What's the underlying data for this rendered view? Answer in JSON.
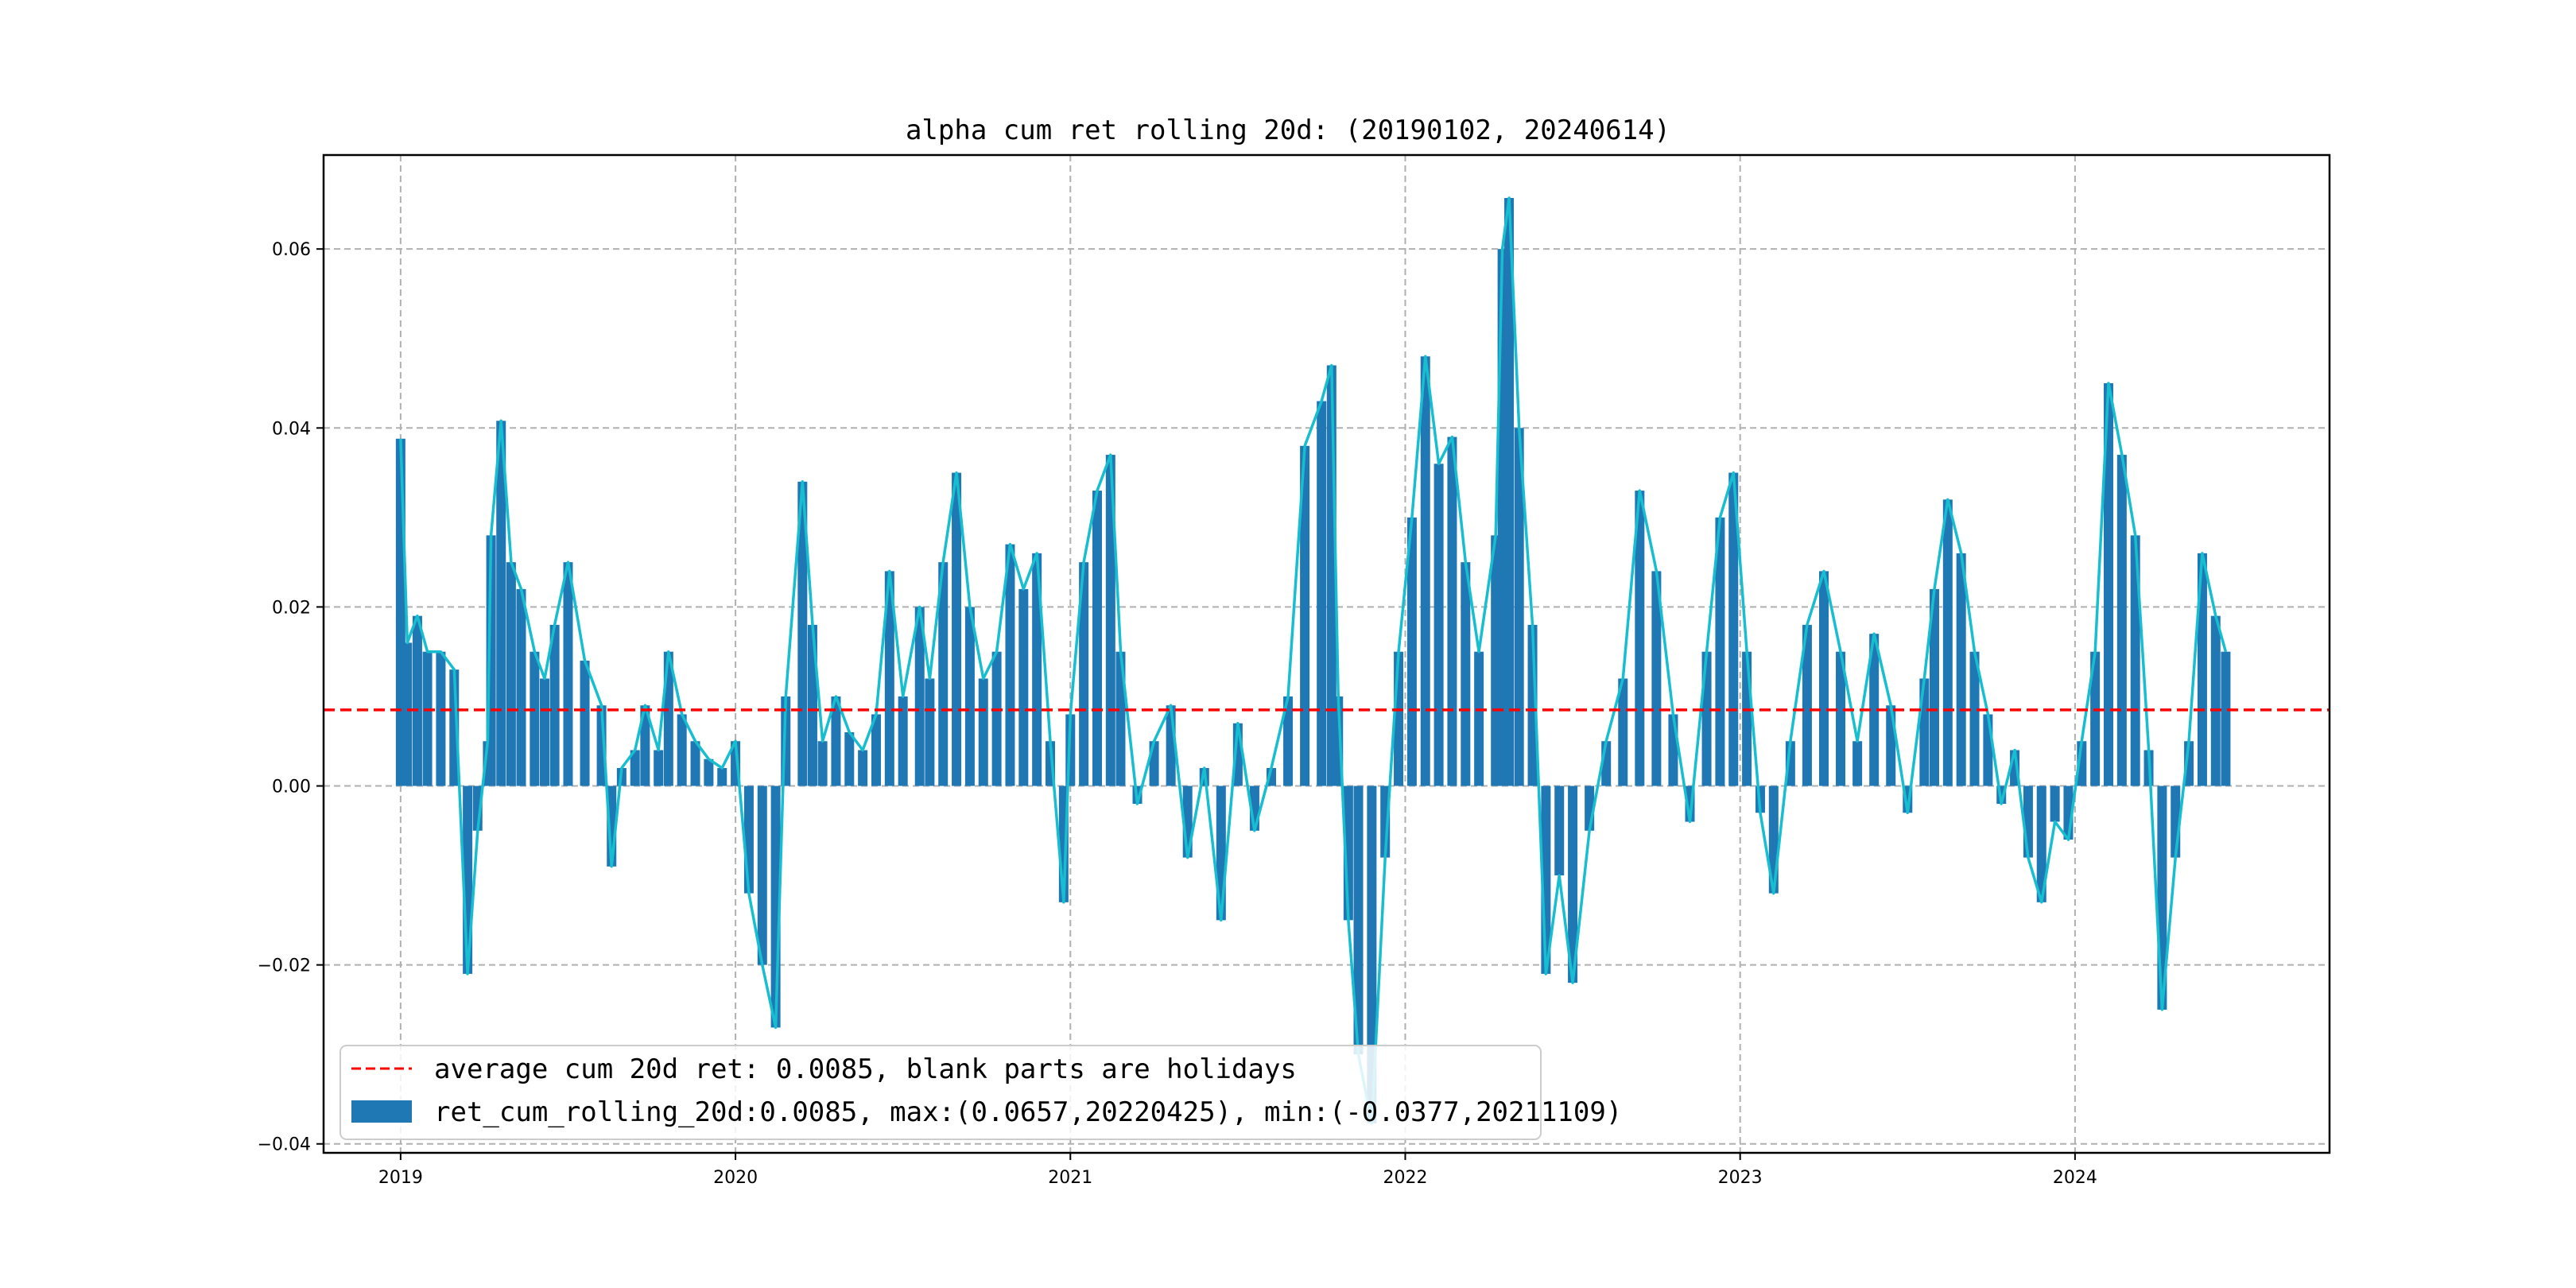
{
  "chart_data": {
    "type": "bar",
    "title": "alpha cum ret rolling 20d: (20190102, 20240614)",
    "xlabel": "",
    "ylabel": "",
    "ylim": [
      -0.041,
      0.0705
    ],
    "xlim": [
      2018.77,
      2024.76
    ],
    "xticks": [
      2019,
      2020,
      2021,
      2022,
      2023,
      2024
    ],
    "xtick_labels": [
      "2019",
      "2020",
      "2021",
      "2022",
      "2023",
      "2024"
    ],
    "yticks": [
      -0.04,
      -0.02,
      0.0,
      0.02,
      0.04,
      0.06
    ],
    "ytick_labels": [
      "−0.04",
      "−0.02",
      "0.00",
      "0.02",
      "0.04",
      "0.06"
    ],
    "grid": true,
    "legend_position": "lower-left",
    "average": 0.0085,
    "legend": {
      "average_label": "average cum 20d ret: 0.0085, blank parts are holidays",
      "series_label": "ret_cum_rolling_20d:0.0085, max:(0.0657,20220425), min:(-0.0377,20211109)"
    },
    "colors": {
      "bar": "#1f77b4",
      "line": "#17becf",
      "average": "#ff0000"
    },
    "series": [
      {
        "name": "ret_cum_rolling_20d",
        "x": [
          2019.0,
          2019.02,
          2019.05,
          2019.08,
          2019.12,
          2019.16,
          2019.2,
          2019.23,
          2019.26,
          2019.27,
          2019.3,
          2019.33,
          2019.36,
          2019.4,
          2019.43,
          2019.46,
          2019.5,
          2019.55,
          2019.6,
          2019.63,
          2019.66,
          2019.7,
          2019.73,
          2019.77,
          2019.8,
          2019.84,
          2019.88,
          2019.92,
          2019.96,
          2020.0,
          2020.04,
          2020.08,
          2020.12,
          2020.15,
          2020.2,
          2020.23,
          2020.26,
          2020.3,
          2020.34,
          2020.38,
          2020.42,
          2020.46,
          2020.5,
          2020.55,
          2020.58,
          2020.62,
          2020.66,
          2020.7,
          2020.74,
          2020.78,
          2020.82,
          2020.86,
          2020.9,
          2020.94,
          2020.98,
          2021.0,
          2021.04,
          2021.08,
          2021.12,
          2021.15,
          2021.2,
          2021.25,
          2021.3,
          2021.35,
          2021.4,
          2021.45,
          2021.5,
          2021.55,
          2021.6,
          2021.65,
          2021.7,
          2021.75,
          2021.78,
          2021.8,
          2021.83,
          2021.86,
          2021.9,
          2021.94,
          2021.98,
          2022.02,
          2022.06,
          2022.1,
          2022.14,
          2022.18,
          2022.22,
          2022.27,
          2022.29,
          2022.31,
          2022.34,
          2022.38,
          2022.42,
          2022.46,
          2022.5,
          2022.55,
          2022.6,
          2022.65,
          2022.7,
          2022.75,
          2022.8,
          2022.85,
          2022.9,
          2022.94,
          2022.98,
          2023.02,
          2023.06,
          2023.1,
          2023.15,
          2023.2,
          2023.25,
          2023.3,
          2023.35,
          2023.4,
          2023.45,
          2023.5,
          2023.55,
          2023.58,
          2023.62,
          2023.66,
          2023.7,
          2023.74,
          2023.78,
          2023.82,
          2023.86,
          2023.9,
          2023.94,
          2023.98,
          2024.02,
          2024.06,
          2024.1,
          2024.14,
          2024.18,
          2024.22,
          2024.26,
          2024.3,
          2024.34,
          2024.38,
          2024.42,
          2024.45
        ],
        "values": [
          0.0388,
          0.016,
          0.019,
          0.015,
          0.015,
          0.013,
          -0.021,
          -0.005,
          0.005,
          0.028,
          0.0408,
          0.025,
          0.022,
          0.015,
          0.012,
          0.018,
          0.025,
          0.014,
          0.009,
          -0.009,
          0.002,
          0.004,
          0.009,
          0.004,
          0.015,
          0.008,
          0.005,
          0.003,
          0.002,
          0.005,
          -0.012,
          -0.02,
          -0.027,
          0.01,
          0.034,
          0.018,
          0.005,
          0.01,
          0.006,
          0.004,
          0.008,
          0.024,
          0.01,
          0.02,
          0.012,
          0.025,
          0.035,
          0.02,
          0.012,
          0.015,
          0.027,
          0.022,
          0.026,
          0.005,
          -0.013,
          0.008,
          0.025,
          0.033,
          0.037,
          0.015,
          -0.002,
          0.005,
          0.009,
          -0.008,
          0.002,
          -0.015,
          0.007,
          -0.005,
          0.002,
          0.01,
          0.038,
          0.043,
          0.047,
          0.01,
          -0.015,
          -0.03,
          -0.0377,
          -0.008,
          0.015,
          0.03,
          0.048,
          0.036,
          0.039,
          0.025,
          0.015,
          0.028,
          0.06,
          0.0657,
          0.04,
          0.018,
          -0.021,
          -0.01,
          -0.022,
          -0.005,
          0.005,
          0.012,
          0.033,
          0.024,
          0.008,
          -0.004,
          0.015,
          0.03,
          0.035,
          0.015,
          -0.003,
          -0.012,
          0.005,
          0.018,
          0.024,
          0.015,
          0.005,
          0.017,
          0.009,
          -0.003,
          0.012,
          0.022,
          0.032,
          0.026,
          0.015,
          0.008,
          -0.002,
          0.004,
          -0.008,
          -0.013,
          -0.004,
          -0.006,
          0.005,
          0.015,
          0.045,
          0.037,
          0.028,
          0.004,
          -0.025,
          -0.008,
          0.005,
          0.026,
          0.019,
          0.015
        ]
      }
    ]
  }
}
